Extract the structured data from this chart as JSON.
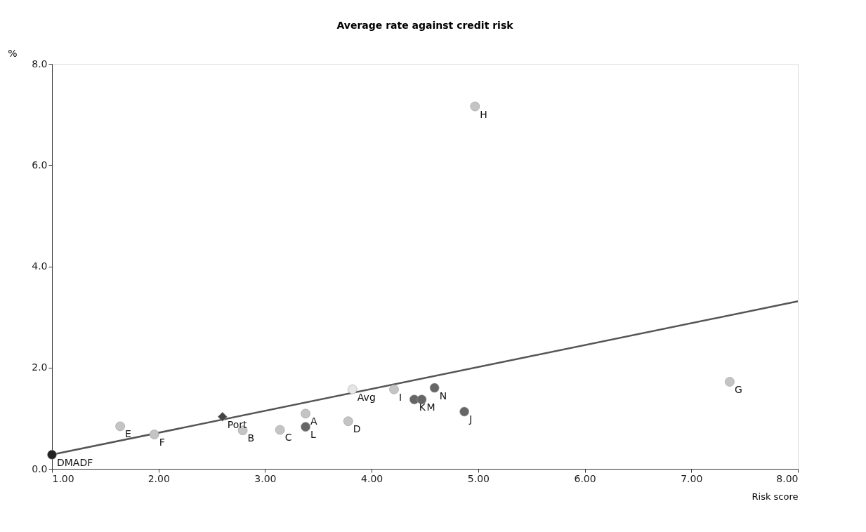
{
  "chart_data": {
    "type": "scatter",
    "title": "Average rate against credit risk",
    "xlabel": "Risk score",
    "ylabel": "%",
    "xlim": [
      1,
      8
    ],
    "ylim": [
      0,
      8
    ],
    "xticks": [
      {
        "value": 1,
        "label": "1.00"
      },
      {
        "value": 2,
        "label": "2.00"
      },
      {
        "value": 3,
        "label": "3.00"
      },
      {
        "value": 4,
        "label": "4.00"
      },
      {
        "value": 5,
        "label": "5.00"
      },
      {
        "value": 6,
        "label": "6.00"
      },
      {
        "value": 7,
        "label": "7.00"
      },
      {
        "value": 8,
        "label": "8.00"
      }
    ],
    "yticks": [
      {
        "value": 0,
        "label": "0.0"
      },
      {
        "value": 2,
        "label": "2.0"
      },
      {
        "value": 4,
        "label": "4.0"
      },
      {
        "value": 6,
        "label": "6.0"
      },
      {
        "value": 8,
        "label": "8.0"
      }
    ],
    "grid": false,
    "series": [
      {
        "type": "line",
        "color": "#555555",
        "marker": "none",
        "line_style": "solid",
        "x": [
          1,
          8
        ],
        "values": [
          0.28,
          3.31
        ]
      },
      {
        "color": "#c4c4c4",
        "marker": "circle",
        "x": [
          1.64,
          1.96,
          2.79,
          3.14,
          3.38,
          3.78,
          4.21,
          4.97,
          7.36
        ],
        "values": [
          0.84,
          0.68,
          0.76,
          0.77,
          1.09,
          0.94,
          1.57,
          7.16,
          1.72
        ]
      },
      {
        "color": "#e6e6e6",
        "marker": "circle",
        "x": [
          3.82
        ],
        "values": [
          1.57
        ]
      },
      {
        "color": "#666666",
        "marker": "circle",
        "x": [
          3.38,
          4.4,
          4.47,
          4.59,
          4.87
        ],
        "values": [
          0.83,
          1.37,
          1.37,
          1.6,
          1.13
        ]
      },
      {
        "color": "#222222",
        "marker": "circle",
        "x": [
          1.0
        ],
        "values": [
          0.28
        ]
      },
      {
        "color": "#444444",
        "marker": "diamond",
        "x": [
          2.6
        ],
        "values": [
          1.03
        ]
      }
    ],
    "annotations": [
      {
        "text": "E",
        "x": 1.64,
        "y": 0.84
      },
      {
        "text": "F",
        "x": 1.96,
        "y": 0.68
      },
      {
        "text": "B",
        "x": 2.79,
        "y": 0.76
      },
      {
        "text": "C",
        "x": 3.14,
        "y": 0.77
      },
      {
        "text": "A",
        "x": 3.38,
        "y": 1.09
      },
      {
        "text": "D",
        "x": 3.78,
        "y": 0.94
      },
      {
        "text": "I",
        "x": 4.21,
        "y": 1.57
      },
      {
        "text": "H",
        "x": 4.97,
        "y": 7.16
      },
      {
        "text": "G",
        "x": 7.36,
        "y": 1.72
      },
      {
        "text": "Avg",
        "x": 3.82,
        "y": 1.57
      },
      {
        "text": "L",
        "x": 3.38,
        "y": 0.83
      },
      {
        "text": "K",
        "x": 4.4,
        "y": 1.37
      },
      {
        "text": "M",
        "x": 4.47,
        "y": 1.37
      },
      {
        "text": "N",
        "x": 4.59,
        "y": 1.6
      },
      {
        "text": "J",
        "x": 4.87,
        "y": 1.13
      },
      {
        "text": "DMADF",
        "x": 1.0,
        "y": 0.28
      },
      {
        "text": "Port",
        "x": 2.6,
        "y": 1.03
      }
    ]
  }
}
